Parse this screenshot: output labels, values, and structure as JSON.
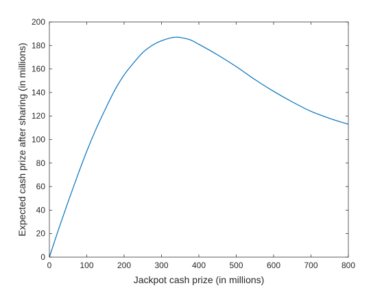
{
  "chart_data": {
    "type": "line",
    "title": "",
    "xlabel": "Jackpot cash prize (in millions)",
    "ylabel": "Expected cash prize after sharing (in millions)",
    "xlim": [
      0,
      800
    ],
    "ylim": [
      0,
      200
    ],
    "xticks": [
      0,
      100,
      200,
      300,
      400,
      500,
      600,
      700,
      800
    ],
    "yticks": [
      0,
      20,
      40,
      60,
      80,
      100,
      120,
      140,
      160,
      180,
      200
    ],
    "grid": false,
    "box": true,
    "line_color": "#0072BD",
    "series": [
      {
        "x": [
          0,
          25,
          50,
          75,
          100,
          125,
          150,
          175,
          200,
          225,
          250,
          275,
          300,
          325,
          340,
          350,
          375,
          400,
          450,
          500,
          550,
          600,
          650,
          700,
          750,
          800
        ],
        "y": [
          0,
          24,
          47,
          69,
          90,
          109,
          126,
          142,
          155,
          165,
          174,
          180,
          184,
          186.5,
          187,
          186.8,
          185,
          181,
          172,
          162,
          151,
          141,
          132,
          124,
          118,
          113
        ]
      }
    ]
  }
}
